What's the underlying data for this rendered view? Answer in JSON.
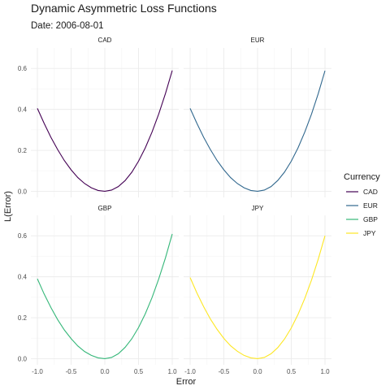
{
  "chart_data": {
    "type": "line",
    "title": "Dynamic Asymmetric Loss Functions",
    "subtitle": "Date: 2006-08-01",
    "xlabel": "Error",
    "ylabel": "L(Error)",
    "xlim": [
      -1.0,
      1.0
    ],
    "ylim": [
      0.0,
      0.6
    ],
    "x_ticks": [
      -1.0,
      -0.5,
      0.0,
      0.5,
      1.0
    ],
    "x_tick_labels": [
      "-1.0",
      "-0.5",
      "0.0",
      "0.5",
      "1.0"
    ],
    "y_ticks": [
      0.0,
      0.2,
      0.4,
      0.6
    ],
    "y_tick_labels": [
      "0.0",
      "0.2",
      "0.4",
      "0.6"
    ],
    "x": [
      -1.0,
      -0.9,
      -0.8,
      -0.7,
      -0.6,
      -0.5,
      -0.4,
      -0.3,
      -0.2,
      -0.1,
      0.0,
      0.1,
      0.2,
      0.3,
      0.4,
      0.5,
      0.6,
      0.7,
      0.8,
      0.9,
      1.0
    ],
    "grid": true,
    "legend": {
      "title": "Currency",
      "position": "right",
      "items": [
        {
          "label": "CAD",
          "color": "#440154"
        },
        {
          "label": "EUR",
          "color": "#31688e"
        },
        {
          "label": "GBP",
          "color": "#35b779"
        },
        {
          "label": "JPY",
          "color": "#fde725"
        }
      ]
    },
    "series": [
      {
        "name": "CAD",
        "color": "#440154",
        "values": [
          0.405,
          0.332,
          0.264,
          0.204,
          0.15,
          0.105,
          0.067,
          0.038,
          0.017,
          0.004,
          0.0,
          0.006,
          0.023,
          0.052,
          0.093,
          0.147,
          0.212,
          0.289,
          0.378,
          0.478,
          0.59
        ]
      },
      {
        "name": "EUR",
        "color": "#31688e",
        "values": [
          0.405,
          0.332,
          0.264,
          0.204,
          0.15,
          0.105,
          0.067,
          0.038,
          0.017,
          0.004,
          0.0,
          0.006,
          0.023,
          0.053,
          0.094,
          0.147,
          0.212,
          0.289,
          0.377,
          0.477,
          0.589
        ]
      },
      {
        "name": "GBP",
        "color": "#35b779",
        "values": [
          0.39,
          0.316,
          0.25,
          0.191,
          0.14,
          0.098,
          0.062,
          0.035,
          0.016,
          0.004,
          0.0,
          0.006,
          0.024,
          0.055,
          0.097,
          0.152,
          0.219,
          0.298,
          0.39,
          0.493,
          0.609
        ]
      },
      {
        "name": "JPY",
        "color": "#fde725",
        "values": [
          0.396,
          0.321,
          0.254,
          0.194,
          0.143,
          0.099,
          0.063,
          0.036,
          0.016,
          0.004,
          0.0,
          0.006,
          0.024,
          0.054,
          0.096,
          0.15,
          0.216,
          0.294,
          0.384,
          0.486,
          0.6
        ]
      }
    ]
  }
}
